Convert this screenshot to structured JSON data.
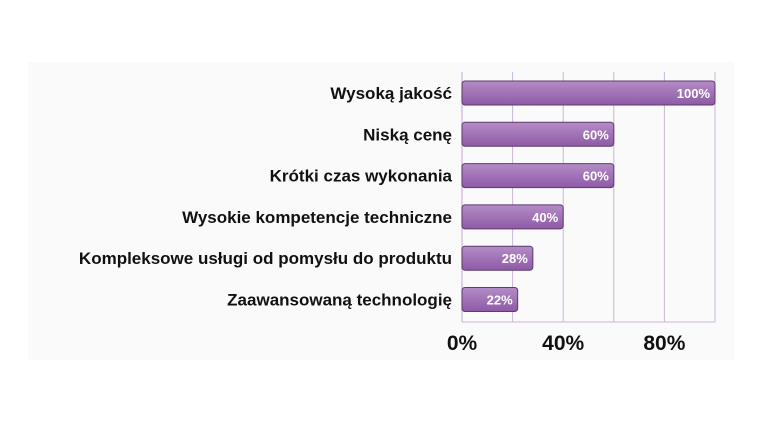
{
  "chart_data": {
    "type": "bar",
    "orientation": "horizontal",
    "categories": [
      "Wysoką jakość",
      "Niską cenę",
      "Krótki czas wykonania",
      "Wysokie kompetencje techniczne",
      "Kompleksowe usługi od pomysłu do produktu",
      "Zaawansowaną technologię"
    ],
    "values": [
      100,
      60,
      60,
      40,
      28,
      22
    ],
    "value_labels": [
      "100%",
      "60%",
      "60%",
      "40%",
      "28%",
      "22%"
    ],
    "xlim": [
      0,
      100
    ],
    "xticks": [
      0,
      40,
      80
    ],
    "xtick_labels": [
      "0%",
      "40%",
      "80%"
    ],
    "grid": true,
    "title": "",
    "xlabel": "",
    "ylabel": "",
    "colors": {
      "bar": "#8e5aa6",
      "bar_light": "#b48cc6",
      "grid": "#c9b7d6"
    }
  }
}
